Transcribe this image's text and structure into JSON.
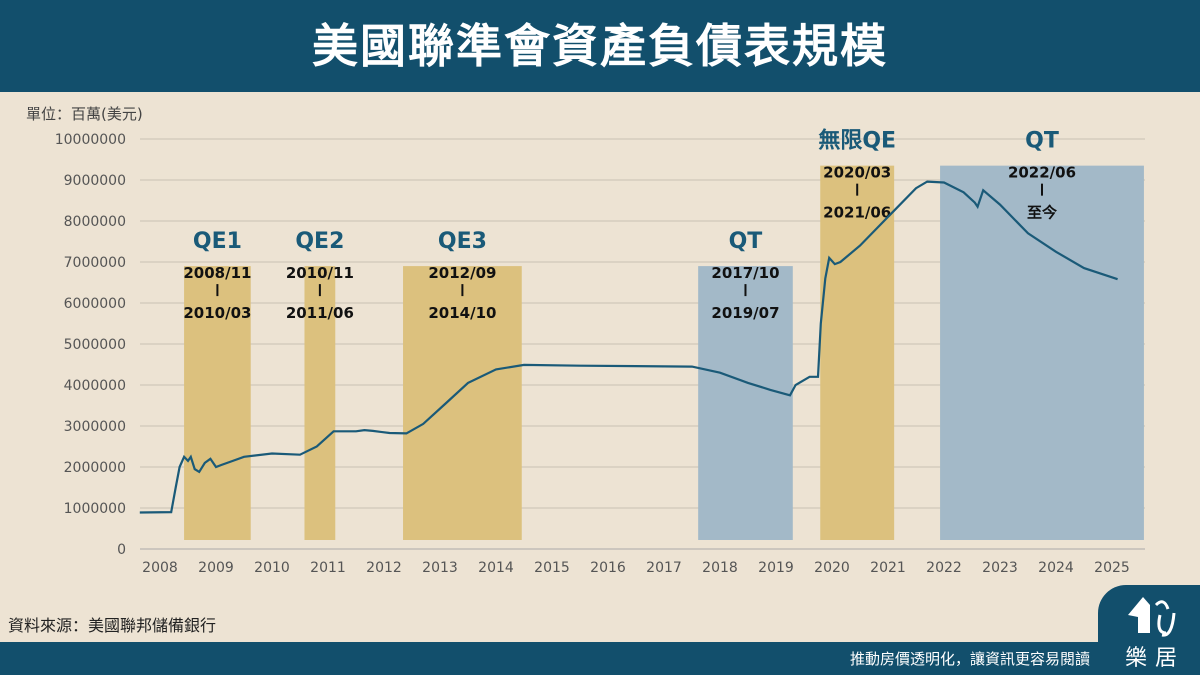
{
  "header": {
    "title": "美國聯準會資產負債表規模"
  },
  "unit_label": "單位：百萬(美元)",
  "source": "資料來源：美國聯邦儲備銀行",
  "footer": {
    "slogan": "推動房價透明化，讓資訊更容易閱讀",
    "logo_text": "樂居"
  },
  "colors": {
    "header": "#124f6c",
    "line": "#1a5a78",
    "qe_band": "#dcc17e",
    "qt_band": "#a3b9c8",
    "title_text": "#1a5a78"
  },
  "chart_data": {
    "type": "line",
    "title": "美國聯準會資產負債表規模",
    "ylabel": "單位：百萬(美元)",
    "ylim": [
      0,
      10000000
    ],
    "yticks": [
      "0",
      "1000000",
      "2000000",
      "3000000",
      "4000000",
      "5000000",
      "6000000",
      "7000000",
      "8000000",
      "9000000",
      "10000000"
    ],
    "xticks": [
      "2008",
      "2009",
      "2010",
      "2011",
      "2012",
      "2013",
      "2014",
      "2015",
      "2016",
      "2017",
      "2018",
      "2019",
      "2020",
      "2021",
      "2022",
      "2023",
      "2024",
      "2025"
    ],
    "grid": true,
    "series": [
      {
        "x": [
          2008.14,
          2008.7,
          2008.78,
          2008.85,
          2008.93,
          2009.0,
          2009.05,
          2009.12,
          2009.2,
          2009.3,
          2009.4,
          2009.5,
          2009.6,
          2009.8,
          2010.0,
          2010.5,
          2011.0,
          2011.3,
          2011.6,
          2012.0,
          2012.15,
          2012.3,
          2012.6,
          2012.9,
          2013.2,
          2013.6,
          2014.0,
          2014.5,
          2015.0,
          2016.0,
          2017.0,
          2018.0,
          2018.5,
          2019.0,
          2019.4,
          2019.75,
          2019.85,
          2020.1,
          2020.25,
          2020.3,
          2020.38,
          2020.45,
          2020.55,
          2020.65,
          2021.0,
          2021.5,
          2022.0,
          2022.2,
          2022.5,
          2022.85,
          2023.05,
          2023.1,
          2023.2,
          2023.5,
          2024.0,
          2024.5,
          2025.0,
          2025.6
        ],
        "y": [
          890000,
          900000,
          1500000,
          2000000,
          2250000,
          2150000,
          2250000,
          1950000,
          1880000,
          2100000,
          2200000,
          2000000,
          2050000,
          2150000,
          2250000,
          2330000,
          2300000,
          2500000,
          2870000,
          2870000,
          2900000,
          2880000,
          2830000,
          2820000,
          3050000,
          3550000,
          4050000,
          4380000,
          4490000,
          4470000,
          4460000,
          4450000,
          4300000,
          4050000,
          3880000,
          3750000,
          4000000,
          4200000,
          4200000,
          5500000,
          6600000,
          7100000,
          6950000,
          7000000,
          7400000,
          8100000,
          8800000,
          8960000,
          8940000,
          8700000,
          8450000,
          8350000,
          8750000,
          8400000,
          7700000,
          7250000,
          6850000,
          6580000
        ]
      }
    ],
    "bands": [
      {
        "label": "QE1",
        "start": "2008/11",
        "end": "2010/03",
        "kind": "qe",
        "t0": 2008.93,
        "t1": 2010.12,
        "top": 6900000
      },
      {
        "label": "QE2",
        "start": "2010/11",
        "end": "2011/06",
        "kind": "qe",
        "t0": 2011.08,
        "t1": 2011.63,
        "top": 6900000
      },
      {
        "label": "QE3",
        "start": "2012/09",
        "end": "2014/10",
        "kind": "qe",
        "t0": 2012.84,
        "t1": 2014.96,
        "top": 6900000
      },
      {
        "label": "QT",
        "start": "2017/10",
        "end": "2019/07",
        "kind": "qt",
        "t0": 2018.11,
        "t1": 2019.8,
        "top": 6900000
      },
      {
        "label": "無限QE",
        "start": "2020/03",
        "end": "2021/06",
        "kind": "qe",
        "t0": 2020.29,
        "t1": 2021.61,
        "top": 9350000
      },
      {
        "label": "QT",
        "start": "2022/06",
        "end": "至今",
        "kind": "qt",
        "t0": 2022.43,
        "t1": 2026.07,
        "top": 9350000
      }
    ]
  }
}
